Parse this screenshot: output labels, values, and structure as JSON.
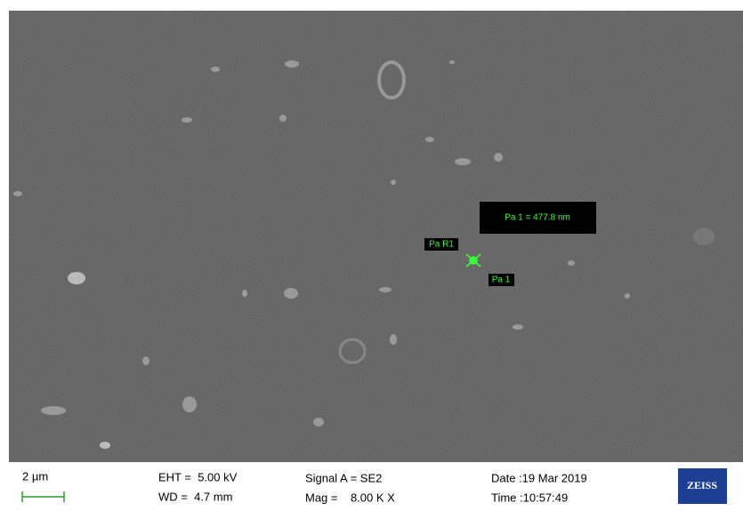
{
  "micrograph": {
    "measurement": "Pa 1 = 477.8 nm",
    "region_label": "Pa R1",
    "point_label": "Pa 1"
  },
  "info_bar": {
    "scale_bar": "2 µm",
    "eht": "EHT =  5.00 kV",
    "wd": "WD =  4.7 mm",
    "signal": "Signal A = SE2",
    "mag": "Mag =    8.00 K X",
    "date": "Date :19 Mar 2019",
    "time": "Time :10:57:49",
    "logo": "ZEISS"
  }
}
